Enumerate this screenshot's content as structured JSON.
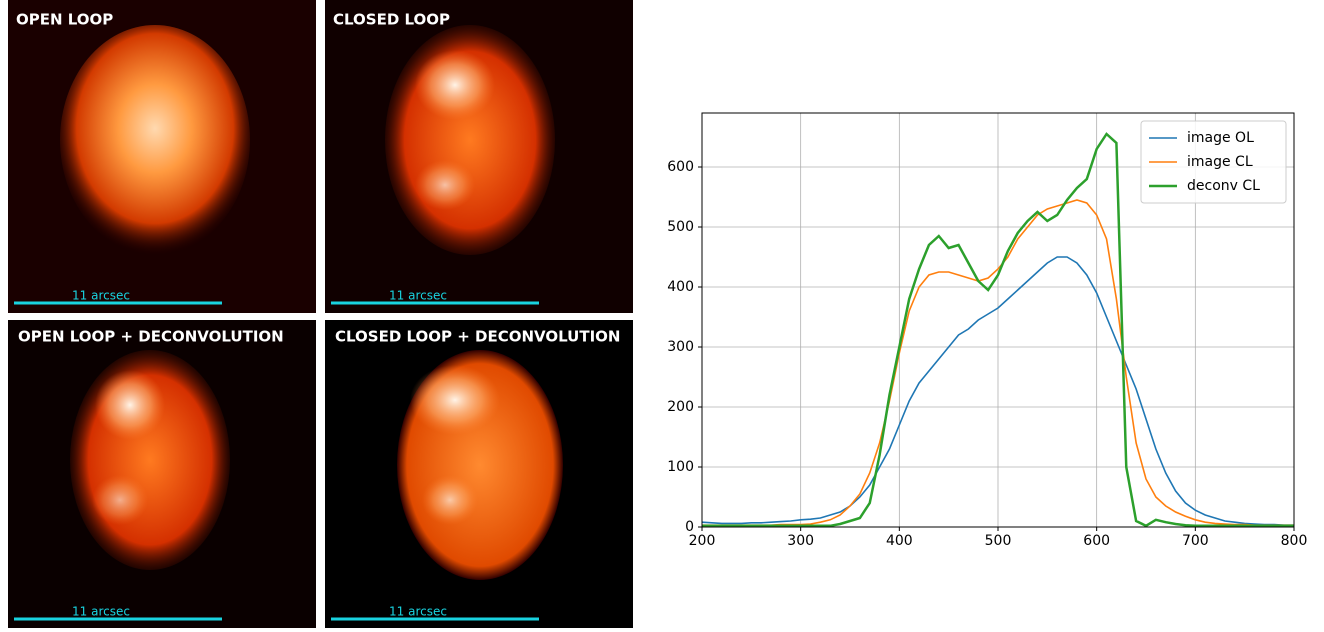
{
  "panels": [
    {
      "label": "OPEN LOOP",
      "scale": "11 arcsec"
    },
    {
      "label": "CLOSED LOOP",
      "scale": "11 arcsec"
    },
    {
      "label": "OPEN LOOP + DECONVOLUTION",
      "scale": "11 arcsec"
    },
    {
      "label": "CLOSED LOOP + DECONVOLUTION",
      "scale": "11 arcsec"
    }
  ],
  "chart_data": {
    "type": "line",
    "x": [
      200,
      210,
      220,
      230,
      240,
      250,
      260,
      270,
      280,
      290,
      300,
      310,
      320,
      330,
      340,
      350,
      360,
      370,
      380,
      390,
      400,
      410,
      420,
      430,
      440,
      450,
      460,
      470,
      480,
      490,
      500,
      510,
      520,
      530,
      540,
      550,
      560,
      570,
      580,
      590,
      600,
      610,
      620,
      630,
      640,
      650,
      660,
      670,
      680,
      690,
      700,
      710,
      720,
      730,
      740,
      750,
      760,
      770,
      780,
      790,
      800
    ],
    "series": [
      {
        "name": "image OL",
        "color": "#1f77b4",
        "values": [
          8,
          7,
          6,
          6,
          6,
          7,
          7,
          8,
          9,
          10,
          12,
          13,
          15,
          20,
          25,
          35,
          50,
          70,
          100,
          130,
          170,
          210,
          240,
          260,
          280,
          300,
          320,
          330,
          345,
          355,
          365,
          380,
          395,
          410,
          425,
          440,
          450,
          450,
          440,
          420,
          390,
          350,
          310,
          270,
          230,
          180,
          130,
          90,
          60,
          40,
          28,
          20,
          15,
          10,
          8,
          6,
          5,
          4,
          4,
          3,
          3
        ]
      },
      {
        "name": "image CL",
        "color": "#ff7f0e",
        "values": [
          3,
          3,
          3,
          3,
          3,
          3,
          3,
          3,
          4,
          4,
          4,
          5,
          8,
          12,
          20,
          35,
          55,
          90,
          140,
          210,
          290,
          360,
          400,
          420,
          425,
          425,
          420,
          415,
          410,
          415,
          430,
          450,
          480,
          500,
          520,
          530,
          535,
          540,
          545,
          540,
          520,
          480,
          380,
          250,
          140,
          80,
          50,
          35,
          25,
          18,
          12,
          8,
          6,
          5,
          4,
          4,
          3,
          3,
          3,
          3,
          3
        ]
      },
      {
        "name": "deconv CL",
        "color": "#2ca02c",
        "values": [
          2,
          2,
          2,
          2,
          2,
          2,
          2,
          2,
          2,
          2,
          2,
          2,
          2,
          2,
          5,
          10,
          15,
          40,
          120,
          220,
          300,
          380,
          430,
          470,
          485,
          465,
          470,
          440,
          410,
          395,
          420,
          460,
          490,
          510,
          525,
          510,
          520,
          545,
          565,
          580,
          630,
          655,
          640,
          100,
          10,
          2,
          12,
          8,
          5,
          3,
          2,
          2,
          2,
          2,
          2,
          2,
          2,
          2,
          2,
          2,
          2
        ]
      }
    ],
    "xlim": [
      200,
      800
    ],
    "ylim": [
      0,
      690
    ],
    "xticks": [
      200,
      300,
      400,
      500,
      600,
      700,
      800
    ],
    "yticks": [
      0,
      100,
      200,
      300,
      400,
      500,
      600
    ],
    "grid": true,
    "legend": "upper right"
  }
}
